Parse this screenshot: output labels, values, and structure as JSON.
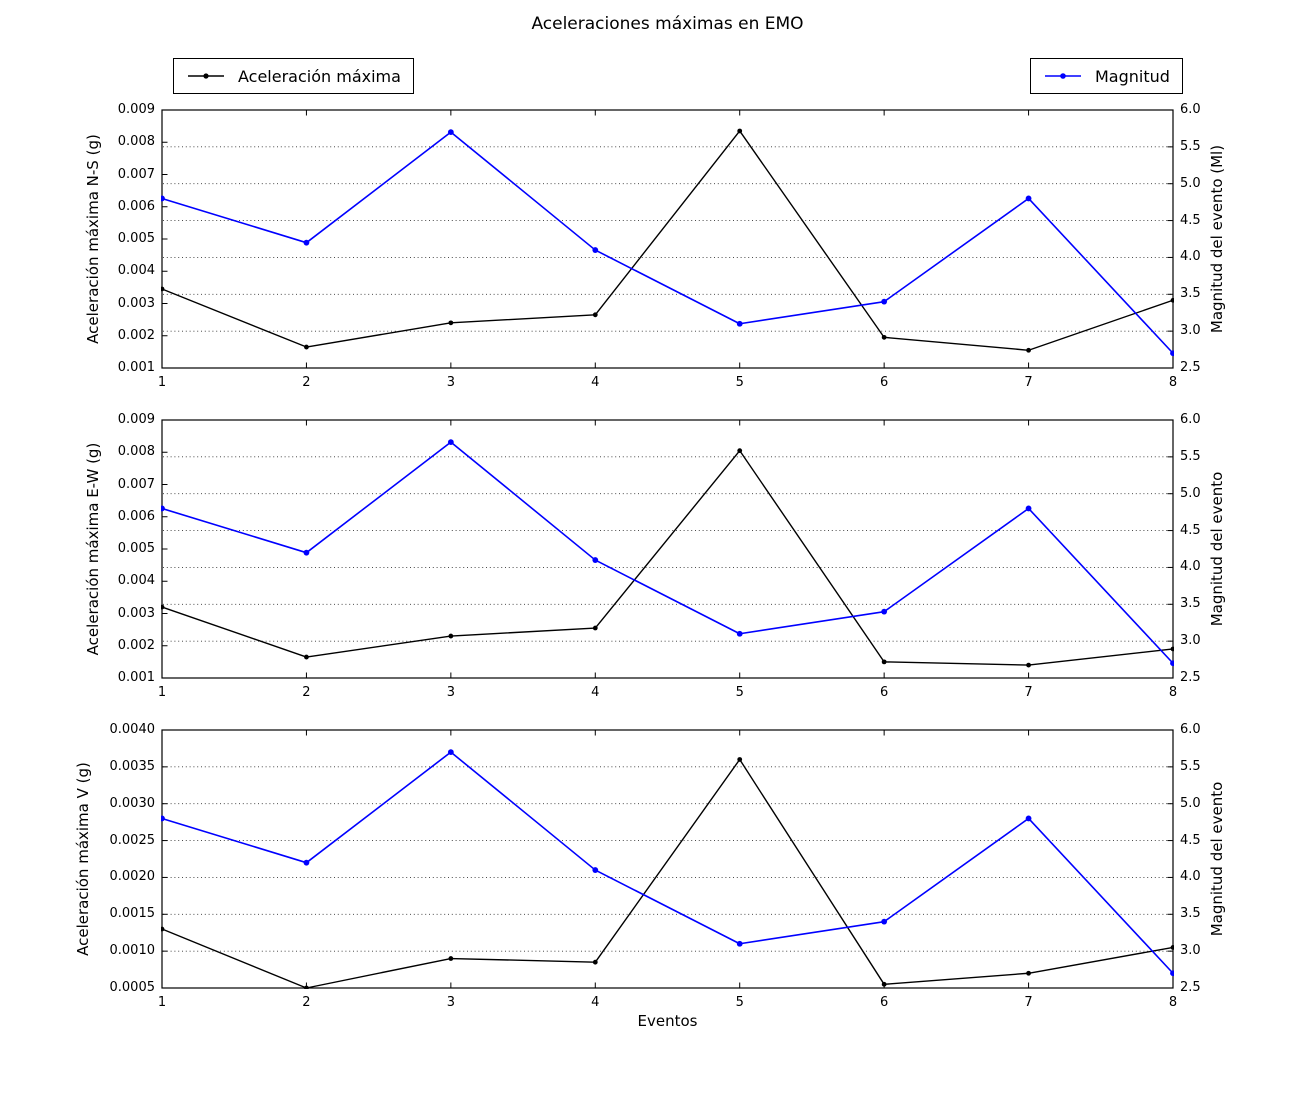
{
  "figure": {
    "title": "Aceleraciones máximas en EMO",
    "xlabel": "Eventos"
  },
  "legends": [
    {
      "label": "Aceleración máxima",
      "color": "#000000"
    },
    {
      "label": "Magnitud",
      "color": "#0000ff"
    }
  ],
  "chart_data": [
    {
      "type": "line",
      "panel": "N-S",
      "x": [
        1,
        2,
        3,
        4,
        5,
        6,
        7,
        8
      ],
      "xticklabels": [
        "1",
        "2",
        "3",
        "4",
        "5",
        "6",
        "7",
        "8"
      ],
      "ylabel_left": "Aceleración máxima N-S (g)",
      "ylabel_right": "Magnitud del evento (Ml)",
      "ylim_left": [
        0.001,
        0.009
      ],
      "ylim_right": [
        2.5,
        6.0
      ],
      "yticks_left": [
        "0.001",
        "0.002",
        "0.003",
        "0.004",
        "0.005",
        "0.006",
        "0.007",
        "0.008",
        "0.009"
      ],
      "yticks_right": [
        "2.5",
        "3.0",
        "3.5",
        "4.0",
        "4.5",
        "5.0",
        "5.5",
        "6.0"
      ],
      "grid": "dotted-horizontal-right-ticks",
      "series": [
        {
          "name": "Aceleración máxima",
          "axis": "left",
          "color": "#000000",
          "marker": "dot",
          "values": [
            0.00345,
            0.00165,
            0.0024,
            0.00265,
            0.00835,
            0.00195,
            0.00155,
            0.0031
          ]
        },
        {
          "name": "Magnitud",
          "axis": "right",
          "color": "#0000ff",
          "marker": "dot",
          "values": [
            4.8,
            4.2,
            5.7,
            4.1,
            3.1,
            3.4,
            4.8,
            2.7
          ]
        }
      ]
    },
    {
      "type": "line",
      "panel": "E-W",
      "x": [
        1,
        2,
        3,
        4,
        5,
        6,
        7,
        8
      ],
      "xticklabels": [
        "1",
        "2",
        "3",
        "4",
        "5",
        "6",
        "7",
        "8"
      ],
      "ylabel_left": "Aceleración máxima E-W (g)",
      "ylabel_right": "Magnitud del evento",
      "ylim_left": [
        0.001,
        0.009
      ],
      "ylim_right": [
        2.5,
        6.0
      ],
      "yticks_left": [
        "0.001",
        "0.002",
        "0.003",
        "0.004",
        "0.005",
        "0.006",
        "0.007",
        "0.008",
        "0.009"
      ],
      "yticks_right": [
        "2.5",
        "3.0",
        "3.5",
        "4.0",
        "4.5",
        "5.0",
        "5.5",
        "6.0"
      ],
      "grid": "dotted-horizontal-right-ticks",
      "series": [
        {
          "name": "Aceleración máxima",
          "axis": "left",
          "color": "#000000",
          "marker": "dot",
          "values": [
            0.0032,
            0.00165,
            0.0023,
            0.00255,
            0.00805,
            0.0015,
            0.0014,
            0.0019
          ]
        },
        {
          "name": "Magnitud",
          "axis": "right",
          "color": "#0000ff",
          "marker": "dot",
          "values": [
            4.8,
            4.2,
            5.7,
            4.1,
            3.1,
            3.4,
            4.8,
            2.7
          ]
        }
      ]
    },
    {
      "type": "line",
      "panel": "V",
      "x": [
        1,
        2,
        3,
        4,
        5,
        6,
        7,
        8
      ],
      "xticklabels": [
        "1",
        "2",
        "3",
        "4",
        "5",
        "6",
        "7",
        "8"
      ],
      "ylabel_left": "Aceleración máxima V (g)",
      "ylabel_right": "Magnitud del evento",
      "ylim_left": [
        0.0005,
        0.004
      ],
      "ylim_right": [
        2.5,
        6.0
      ],
      "yticks_left": [
        "0.0005",
        "0.0010",
        "0.0015",
        "0.0020",
        "0.0025",
        "0.0030",
        "0.0035",
        "0.0040"
      ],
      "yticks_right": [
        "2.5",
        "3.0",
        "3.5",
        "4.0",
        "4.5",
        "5.0",
        "5.5",
        "6.0"
      ],
      "grid": "dotted-horizontal-right-ticks",
      "series": [
        {
          "name": "Aceleración máxima",
          "axis": "left",
          "color": "#000000",
          "marker": "dot",
          "values": [
            0.0013,
            0.0005,
            0.0009,
            0.00085,
            0.0036,
            0.00055,
            0.0007,
            0.00105
          ]
        },
        {
          "name": "Magnitud",
          "axis": "right",
          "color": "#0000ff",
          "marker": "dot",
          "values": [
            4.8,
            4.2,
            5.7,
            4.1,
            3.1,
            3.4,
            4.8,
            2.7
          ]
        }
      ]
    }
  ]
}
